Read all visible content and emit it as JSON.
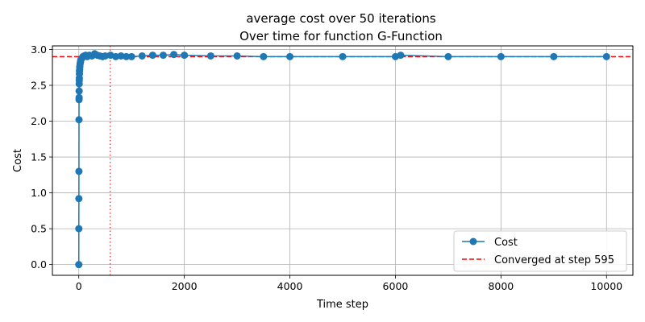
{
  "chart_data": {
    "type": "line",
    "title": "average cost over 50 iterations",
    "subtitle": "Over time for function G-Function",
    "xlabel": "Time step",
    "ylabel": "Cost",
    "xlim": [
      -500,
      10500
    ],
    "ylim": [
      -0.15,
      3.05
    ],
    "xticks": [
      0,
      2000,
      4000,
      6000,
      8000,
      10000
    ],
    "xtick_labels": [
      "0",
      "2000",
      "4000",
      "6000",
      "8000",
      "10000"
    ],
    "yticks": [
      0.0,
      0.5,
      1.0,
      1.5,
      2.0,
      2.5,
      3.0
    ],
    "ytick_labels": [
      "0.0",
      "0.5",
      "1.0",
      "1.5",
      "2.0",
      "2.5",
      "3.0"
    ],
    "grid": true,
    "legend_position": "bottom-right",
    "series": [
      {
        "name": "Cost",
        "color": "#1f77b4",
        "marker": "circle",
        "x": [
          0,
          1,
          2,
          3,
          4,
          5,
          6,
          7,
          8,
          9,
          10,
          12,
          14,
          16,
          18,
          20,
          25,
          30,
          35,
          40,
          50,
          60,
          80,
          100,
          130,
          160,
          200,
          250,
          300,
          350,
          400,
          450,
          500,
          600,
          700,
          800,
          900,
          1000,
          1200,
          1400,
          1600,
          1800,
          2000,
          2500,
          3000,
          3500,
          4000,
          5000,
          6000,
          6100,
          7000,
          8000,
          9000,
          10000
        ],
        "y": [
          0.0,
          0.5,
          0.92,
          1.3,
          2.02,
          2.3,
          2.33,
          2.42,
          2.52,
          2.57,
          2.6,
          2.66,
          2.7,
          2.72,
          2.75,
          2.77,
          2.8,
          2.82,
          2.84,
          2.86,
          2.87,
          2.88,
          2.9,
          2.91,
          2.92,
          2.9,
          2.92,
          2.91,
          2.94,
          2.92,
          2.91,
          2.9,
          2.91,
          2.92,
          2.9,
          2.91,
          2.9,
          2.9,
          2.91,
          2.92,
          2.92,
          2.93,
          2.92,
          2.91,
          2.91,
          2.9,
          2.9,
          2.9,
          2.9,
          2.92,
          2.9,
          2.9,
          2.9,
          2.9
        ]
      }
    ],
    "reference_lines": [
      {
        "orientation": "horizontal",
        "y": 2.9,
        "color": "#ff0000",
        "style": "dashed",
        "label": "Converged at step 595"
      },
      {
        "orientation": "vertical",
        "x": 595,
        "color": "#e03030",
        "style": "dotted"
      }
    ],
    "legend": [
      {
        "label": "Cost",
        "color": "#1f77b4",
        "kind": "line-marker"
      },
      {
        "label": "Converged at step 595",
        "color": "#ff0000",
        "kind": "dashed"
      }
    ]
  }
}
